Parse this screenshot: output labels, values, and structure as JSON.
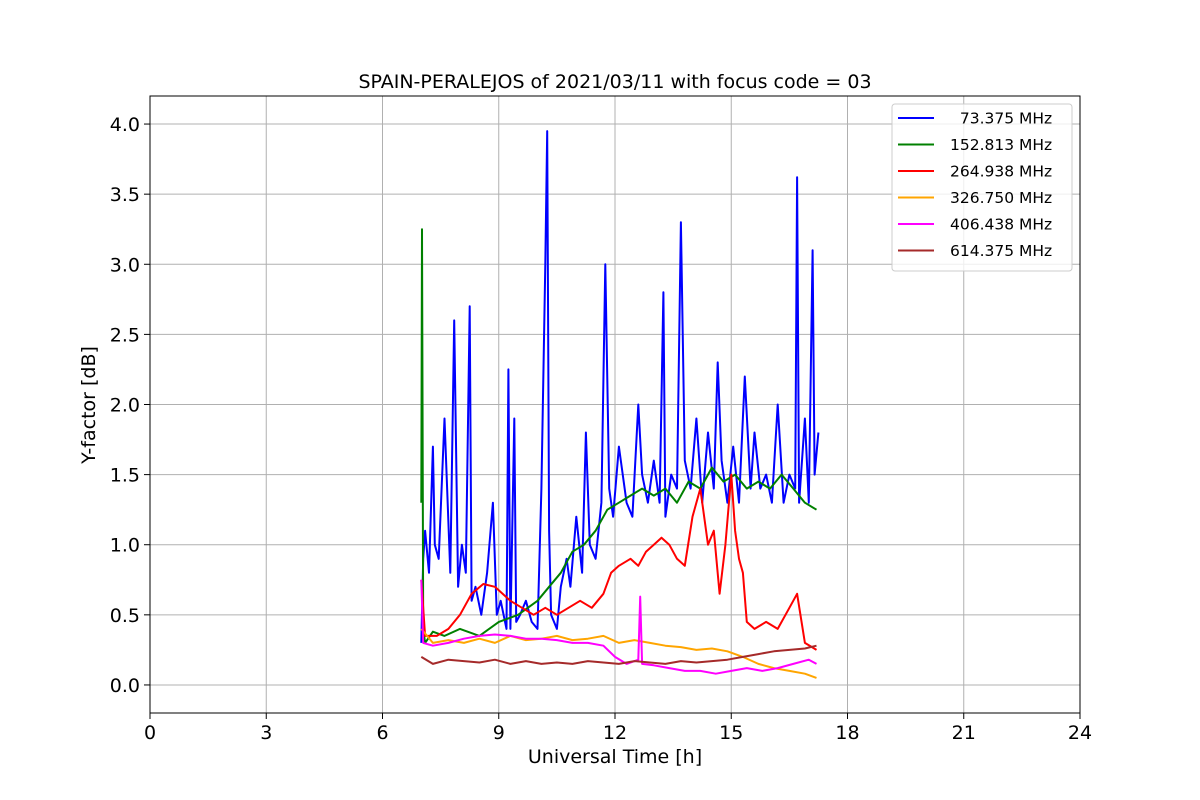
{
  "chart_data": {
    "type": "line",
    "title": "SPAIN-PERALEJOS of 2021/03/11 with focus code = 03",
    "xlabel": "Universal Time [h]",
    "ylabel": "Y-factor [dB]",
    "xlim": [
      0,
      24
    ],
    "ylim": [
      -0.2,
      4.2
    ],
    "xticks": [
      0,
      3,
      6,
      9,
      12,
      15,
      18,
      21,
      24
    ],
    "xtick_labels": [
      "0",
      "3",
      "6",
      "9",
      "12",
      "15",
      "18",
      "21",
      "24"
    ],
    "yticks": [
      0.0,
      0.5,
      1.0,
      1.5,
      2.0,
      2.5,
      3.0,
      3.5,
      4.0
    ],
    "ytick_labels": [
      "0.0",
      "0.5",
      "1.0",
      "1.5",
      "2.0",
      "2.5",
      "3.0",
      "3.5",
      "4.0"
    ],
    "grid": true,
    "legend_position": "top-right",
    "series": [
      {
        "name": "  73.375 MHz",
        "color": "#0000ff",
        "x": [
          7.0,
          7.05,
          7.1,
          7.2,
          7.3,
          7.35,
          7.45,
          7.6,
          7.75,
          7.85,
          7.95,
          8.05,
          8.15,
          8.25,
          8.3,
          8.4,
          8.55,
          8.7,
          8.85,
          8.95,
          9.05,
          9.2,
          9.25,
          9.3,
          9.4,
          9.45,
          9.55,
          9.7,
          9.85,
          10.0,
          10.1,
          10.2,
          10.25,
          10.3,
          10.35,
          10.5,
          10.6,
          10.75,
          10.85,
          11.0,
          11.15,
          11.25,
          11.35,
          11.5,
          11.65,
          11.75,
          11.85,
          11.95,
          12.1,
          12.3,
          12.45,
          12.6,
          12.7,
          12.85,
          13.0,
          13.15,
          13.25,
          13.3,
          13.45,
          13.6,
          13.7,
          13.8,
          13.95,
          14.1,
          14.25,
          14.4,
          14.55,
          14.65,
          14.75,
          14.9,
          15.05,
          15.2,
          15.35,
          15.5,
          15.6,
          15.75,
          15.9,
          16.05,
          16.2,
          16.35,
          16.5,
          16.65,
          16.7,
          16.75,
          16.9,
          17.0,
          17.1,
          17.15,
          17.25
        ],
        "y": [
          0.3,
          0.9,
          1.1,
          0.8,
          1.7,
          1.0,
          0.9,
          1.9,
          0.8,
          2.6,
          0.7,
          1.0,
          0.8,
          2.7,
          0.6,
          0.7,
          0.5,
          0.8,
          1.3,
          0.5,
          0.6,
          0.4,
          2.25,
          0.4,
          1.9,
          0.45,
          0.5,
          0.6,
          0.45,
          0.4,
          1.4,
          3.0,
          3.95,
          1.1,
          0.5,
          0.4,
          0.7,
          0.9,
          0.7,
          1.2,
          0.8,
          1.8,
          1.0,
          0.9,
          1.3,
          3.0,
          1.4,
          1.2,
          1.7,
          1.3,
          1.2,
          2.0,
          1.5,
          1.3,
          1.6,
          1.3,
          2.8,
          1.2,
          1.5,
          1.4,
          3.3,
          1.6,
          1.4,
          1.9,
          1.3,
          1.8,
          1.4,
          2.3,
          1.6,
          1.3,
          1.7,
          1.3,
          2.2,
          1.4,
          1.8,
          1.4,
          1.5,
          1.3,
          2.0,
          1.3,
          1.5,
          1.4,
          3.62,
          1.3,
          1.9,
          1.3,
          3.1,
          1.5,
          1.8
        ]
      },
      {
        "name": "152.813 MHz",
        "color": "#008000",
        "x": [
          7.0,
          7.02,
          7.05,
          7.1,
          7.3,
          7.6,
          8.0,
          8.5,
          9.0,
          9.5,
          10.0,
          10.3,
          10.6,
          10.9,
          11.2,
          11.5,
          11.8,
          12.1,
          12.4,
          12.7,
          13.0,
          13.3,
          13.6,
          13.9,
          14.2,
          14.5,
          14.8,
          15.1,
          15.4,
          15.7,
          16.0,
          16.3,
          16.6,
          16.9,
          17.2
        ],
        "y": [
          1.3,
          3.25,
          0.4,
          0.3,
          0.38,
          0.35,
          0.4,
          0.35,
          0.45,
          0.5,
          0.6,
          0.7,
          0.8,
          0.95,
          1.0,
          1.1,
          1.25,
          1.3,
          1.35,
          1.4,
          1.35,
          1.4,
          1.3,
          1.45,
          1.4,
          1.55,
          1.45,
          1.5,
          1.4,
          1.45,
          1.4,
          1.5,
          1.4,
          1.3,
          1.25
        ]
      },
      {
        "name": "264.938 MHz",
        "color": "#ff0000",
        "x": [
          7.0,
          7.1,
          7.4,
          7.7,
          8.0,
          8.3,
          8.6,
          8.9,
          9.1,
          9.3,
          9.6,
          9.9,
          10.2,
          10.5,
          10.8,
          11.1,
          11.4,
          11.7,
          11.9,
          12.1,
          12.4,
          12.6,
          12.8,
          13.0,
          13.2,
          13.4,
          13.6,
          13.8,
          14.0,
          14.2,
          14.4,
          14.55,
          14.7,
          14.85,
          15.0,
          15.1,
          15.2,
          15.3,
          15.4,
          15.6,
          15.9,
          16.2,
          16.5,
          16.7,
          16.9,
          17.2
        ],
        "y": [
          0.75,
          0.35,
          0.35,
          0.4,
          0.5,
          0.65,
          0.72,
          0.7,
          0.65,
          0.6,
          0.55,
          0.5,
          0.55,
          0.5,
          0.55,
          0.6,
          0.55,
          0.65,
          0.8,
          0.85,
          0.9,
          0.85,
          0.95,
          1.0,
          1.05,
          1.0,
          0.9,
          0.85,
          1.2,
          1.4,
          1.0,
          1.1,
          0.65,
          1.0,
          1.5,
          1.1,
          0.9,
          0.8,
          0.45,
          0.4,
          0.45,
          0.4,
          0.55,
          0.65,
          0.3,
          0.25
        ]
      },
      {
        "name": "326.750 MHz",
        "color": "#ffa500",
        "x": [
          7.0,
          7.3,
          7.7,
          8.1,
          8.5,
          8.9,
          9.3,
          9.7,
          10.1,
          10.5,
          10.9,
          11.3,
          11.7,
          12.1,
          12.5,
          12.9,
          13.3,
          13.7,
          14.1,
          14.5,
          14.9,
          15.3,
          15.7,
          16.1,
          16.5,
          16.9,
          17.2
        ],
        "y": [
          0.4,
          0.3,
          0.32,
          0.3,
          0.33,
          0.3,
          0.35,
          0.32,
          0.33,
          0.35,
          0.32,
          0.33,
          0.35,
          0.3,
          0.32,
          0.3,
          0.28,
          0.27,
          0.25,
          0.26,
          0.24,
          0.2,
          0.15,
          0.12,
          0.1,
          0.08,
          0.05
        ]
      },
      {
        "name": "406.438 MHz",
        "color": "#ff00ff",
        "x": [
          7.0,
          7.05,
          7.3,
          7.7,
          8.1,
          8.5,
          8.9,
          9.3,
          9.7,
          10.1,
          10.5,
          10.9,
          11.3,
          11.7,
          12.0,
          12.3,
          12.6,
          12.65,
          12.7,
          13.0,
          13.4,
          13.8,
          14.2,
          14.6,
          15.0,
          15.4,
          15.8,
          16.2,
          16.6,
          17.0,
          17.2
        ],
        "y": [
          0.75,
          0.3,
          0.28,
          0.3,
          0.33,
          0.35,
          0.36,
          0.35,
          0.33,
          0.33,
          0.32,
          0.3,
          0.3,
          0.28,
          0.2,
          0.15,
          0.18,
          0.63,
          0.15,
          0.14,
          0.12,
          0.1,
          0.1,
          0.08,
          0.1,
          0.12,
          0.1,
          0.12,
          0.15,
          0.18,
          0.15
        ]
      },
      {
        "name": "614.375 MHz",
        "color": "#a52a2a",
        "x": [
          7.0,
          7.3,
          7.7,
          8.1,
          8.5,
          8.9,
          9.3,
          9.7,
          10.1,
          10.5,
          10.9,
          11.3,
          11.7,
          12.1,
          12.5,
          12.9,
          13.3,
          13.7,
          14.1,
          14.5,
          14.9,
          15.3,
          15.7,
          16.1,
          16.5,
          16.9,
          17.2
        ],
        "y": [
          0.2,
          0.15,
          0.18,
          0.17,
          0.16,
          0.18,
          0.15,
          0.17,
          0.15,
          0.16,
          0.15,
          0.17,
          0.16,
          0.15,
          0.17,
          0.16,
          0.15,
          0.17,
          0.16,
          0.17,
          0.18,
          0.2,
          0.22,
          0.24,
          0.25,
          0.26,
          0.28
        ]
      }
    ]
  }
}
